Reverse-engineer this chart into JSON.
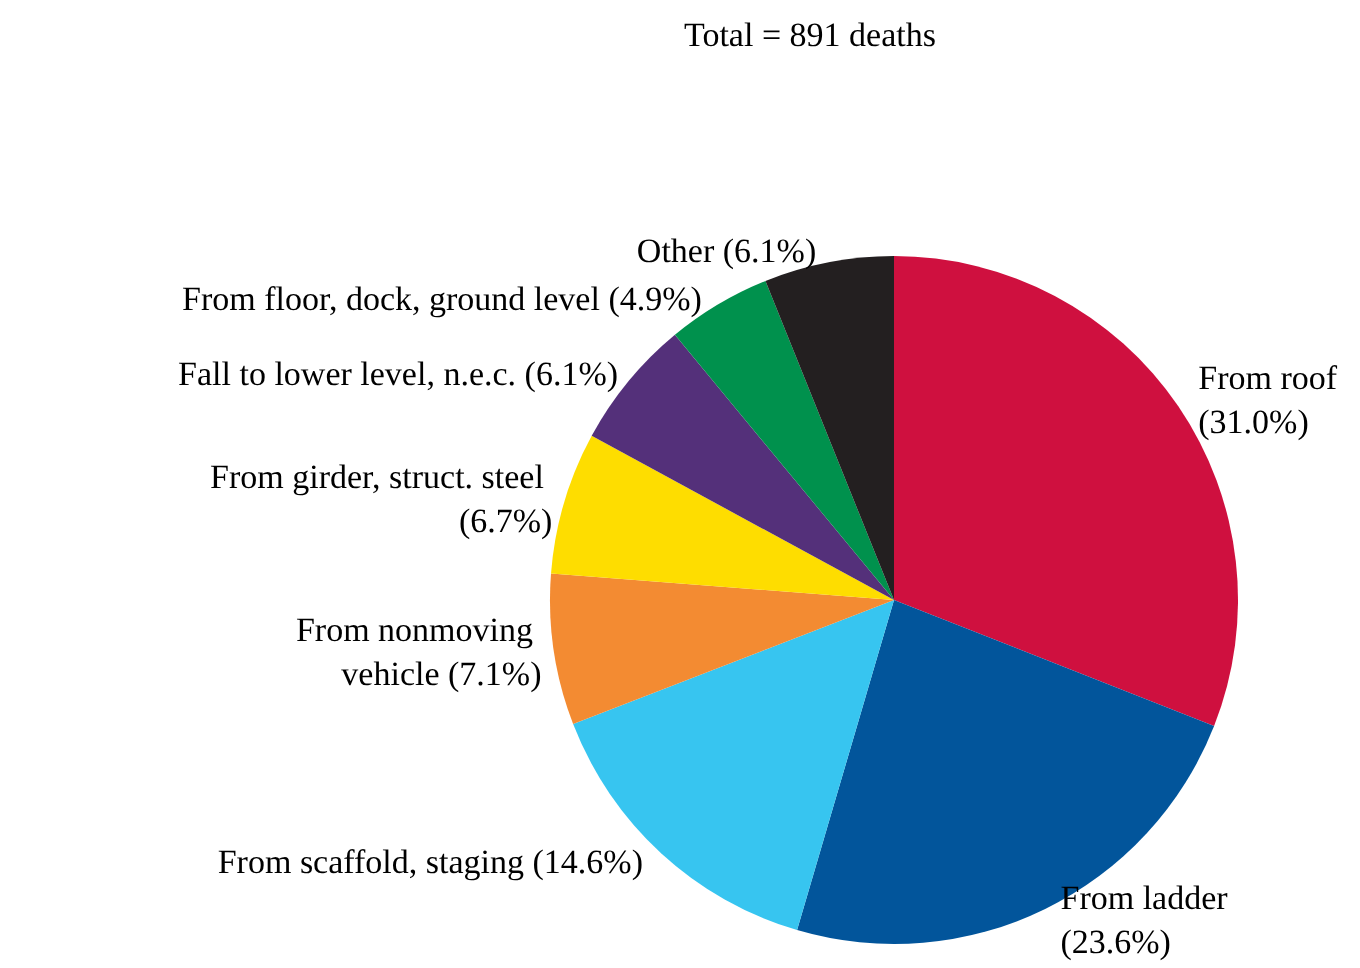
{
  "chart_data": {
    "type": "pie",
    "title": "Total = 891 deaths",
    "categories": [
      "From roof",
      "From ladder",
      "From scaffold, staging",
      "From nonmoving vehicle",
      "From girder, struct. steel",
      "Fall to lower level, n.e.c.",
      "From floor, dock, ground level",
      "Other"
    ],
    "values": [
      31.0,
      23.6,
      14.6,
      7.1,
      6.7,
      6.1,
      4.9,
      6.1
    ],
    "value_labels": [
      "(31.0%)",
      "(23.6%)",
      "(14.6%)",
      "(7.1%)",
      "(6.7%)",
      "(6.1%)",
      "(4.9%)",
      "(6.1%)"
    ],
    "colors": [
      "#cf103f",
      "#02559b",
      "#37c5f0",
      "#f38b32",
      "#fedd00",
      "#54307a",
      "#00914d",
      "#231f20"
    ],
    "legend": false
  }
}
